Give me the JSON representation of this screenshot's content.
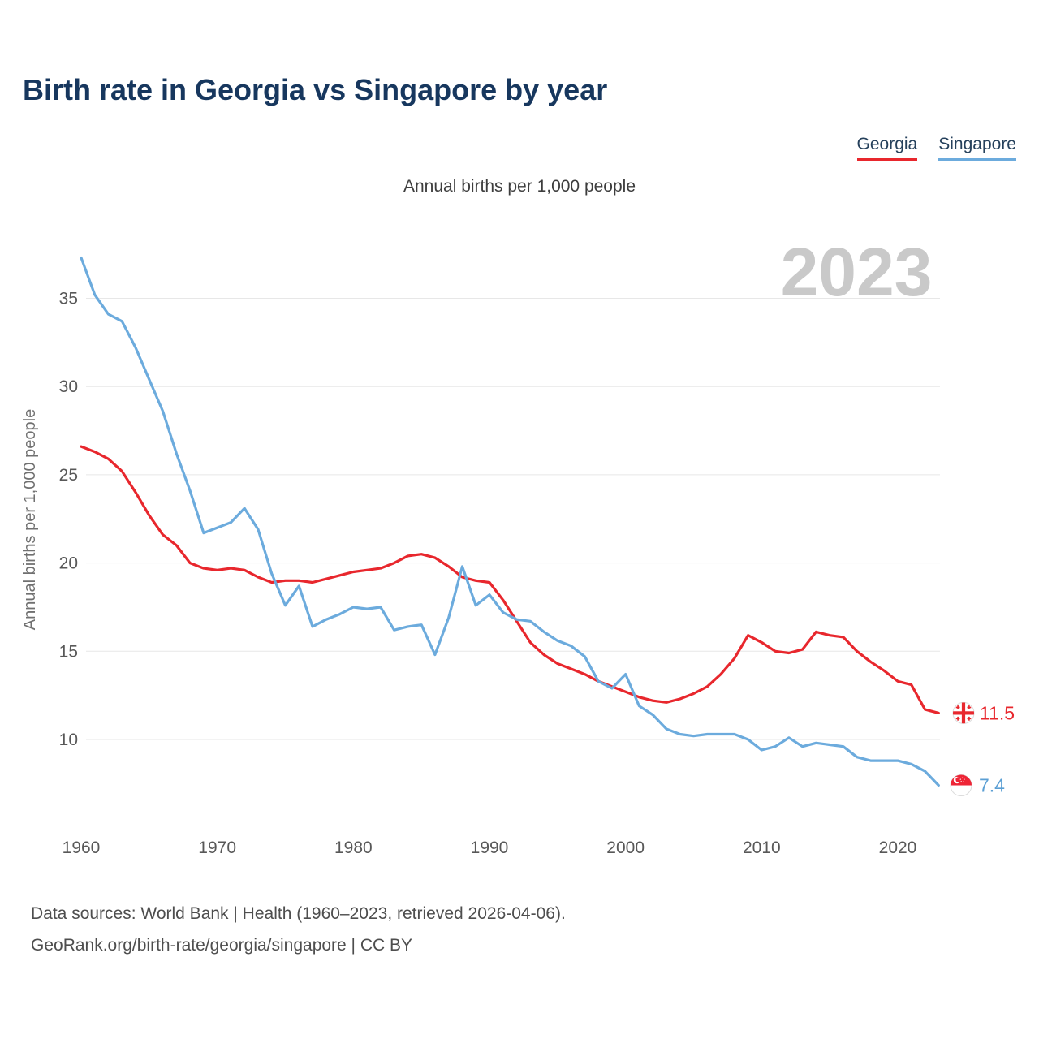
{
  "title": "Birth rate in Georgia vs Singapore by year",
  "subtitle": "Annual births per 1,000 people",
  "watermark": "2023",
  "legend": [
    {
      "label": "Georgia",
      "color": "#e8272d"
    },
    {
      "label": "Singapore",
      "color": "#6cabdd"
    }
  ],
  "end_labels": [
    {
      "series": "Georgia",
      "value": "11.5",
      "color": "#e8272d"
    },
    {
      "series": "Singapore",
      "value": "7.4",
      "color": "#5b9fd4"
    }
  ],
  "footer": {
    "line1": "Data sources: World Bank | Health (1960–2023, retrieved 2026-04-06).",
    "line2": "GeoRank.org/birth-rate/georgia/singapore | CC BY"
  },
  "chart_data": {
    "type": "line",
    "title": "Birth rate in Georgia vs Singapore by year",
    "subtitle": "Annual births per 1,000 people",
    "ylabel": "Annual births per 1,000 people",
    "xlabel": "",
    "grid": "horizontal",
    "legend_position": "top-right",
    "xlim": [
      1960,
      2023
    ],
    "ylim": [
      6.5,
      38
    ],
    "xticks": [
      1960,
      1970,
      1980,
      1990,
      2000,
      2010,
      2020
    ],
    "yticks": [
      10,
      15,
      20,
      25,
      30,
      35
    ],
    "x": [
      1960,
      1961,
      1962,
      1963,
      1964,
      1965,
      1966,
      1967,
      1968,
      1969,
      1970,
      1971,
      1972,
      1973,
      1974,
      1975,
      1976,
      1977,
      1978,
      1979,
      1980,
      1981,
      1982,
      1983,
      1984,
      1985,
      1986,
      1987,
      1988,
      1989,
      1990,
      1991,
      1992,
      1993,
      1994,
      1995,
      1996,
      1997,
      1998,
      1999,
      2000,
      2001,
      2002,
      2003,
      2004,
      2005,
      2006,
      2007,
      2008,
      2009,
      2010,
      2011,
      2012,
      2013,
      2014,
      2015,
      2016,
      2017,
      2018,
      2019,
      2020,
      2021,
      2022,
      2023
    ],
    "series": [
      {
        "name": "Georgia",
        "color": "#e8272d",
        "values": [
          26.6,
          26.3,
          25.9,
          25.2,
          24.0,
          22.7,
          21.6,
          21.0,
          20.0,
          19.7,
          19.6,
          19.7,
          19.6,
          19.2,
          18.9,
          19.0,
          19.0,
          18.9,
          19.1,
          19.3,
          19.5,
          19.6,
          19.7,
          20.0,
          20.4,
          20.5,
          20.3,
          19.8,
          19.2,
          19.0,
          18.9,
          17.9,
          16.7,
          15.5,
          14.8,
          14.3,
          14.0,
          13.7,
          13.3,
          13.0,
          12.7,
          12.4,
          12.2,
          12.1,
          12.3,
          12.6,
          13.0,
          13.7,
          14.6,
          15.9,
          15.5,
          15.0,
          14.9,
          15.1,
          16.1,
          15.9,
          15.8,
          15.0,
          14.4,
          13.9,
          13.3,
          13.1,
          11.7,
          11.5
        ]
      },
      {
        "name": "Singapore",
        "color": "#6cabdd",
        "values": [
          37.3,
          35.2,
          34.1,
          33.7,
          32.2,
          30.4,
          28.6,
          26.2,
          24.1,
          21.7,
          22.0,
          22.3,
          23.1,
          21.9,
          19.4,
          17.6,
          18.7,
          16.4,
          16.8,
          17.1,
          17.5,
          17.4,
          17.5,
          16.2,
          16.4,
          16.5,
          14.8,
          16.9,
          19.8,
          17.6,
          18.2,
          17.2,
          16.8,
          16.7,
          16.1,
          15.6,
          15.3,
          14.7,
          13.3,
          12.9,
          13.7,
          11.9,
          11.4,
          10.6,
          10.3,
          10.2,
          10.3,
          10.3,
          10.3,
          10.0,
          9.4,
          9.6,
          10.1,
          9.6,
          9.8,
          9.7,
          9.6,
          9.0,
          8.8,
          8.8,
          8.8,
          8.6,
          8.2,
          7.4
        ]
      }
    ]
  }
}
